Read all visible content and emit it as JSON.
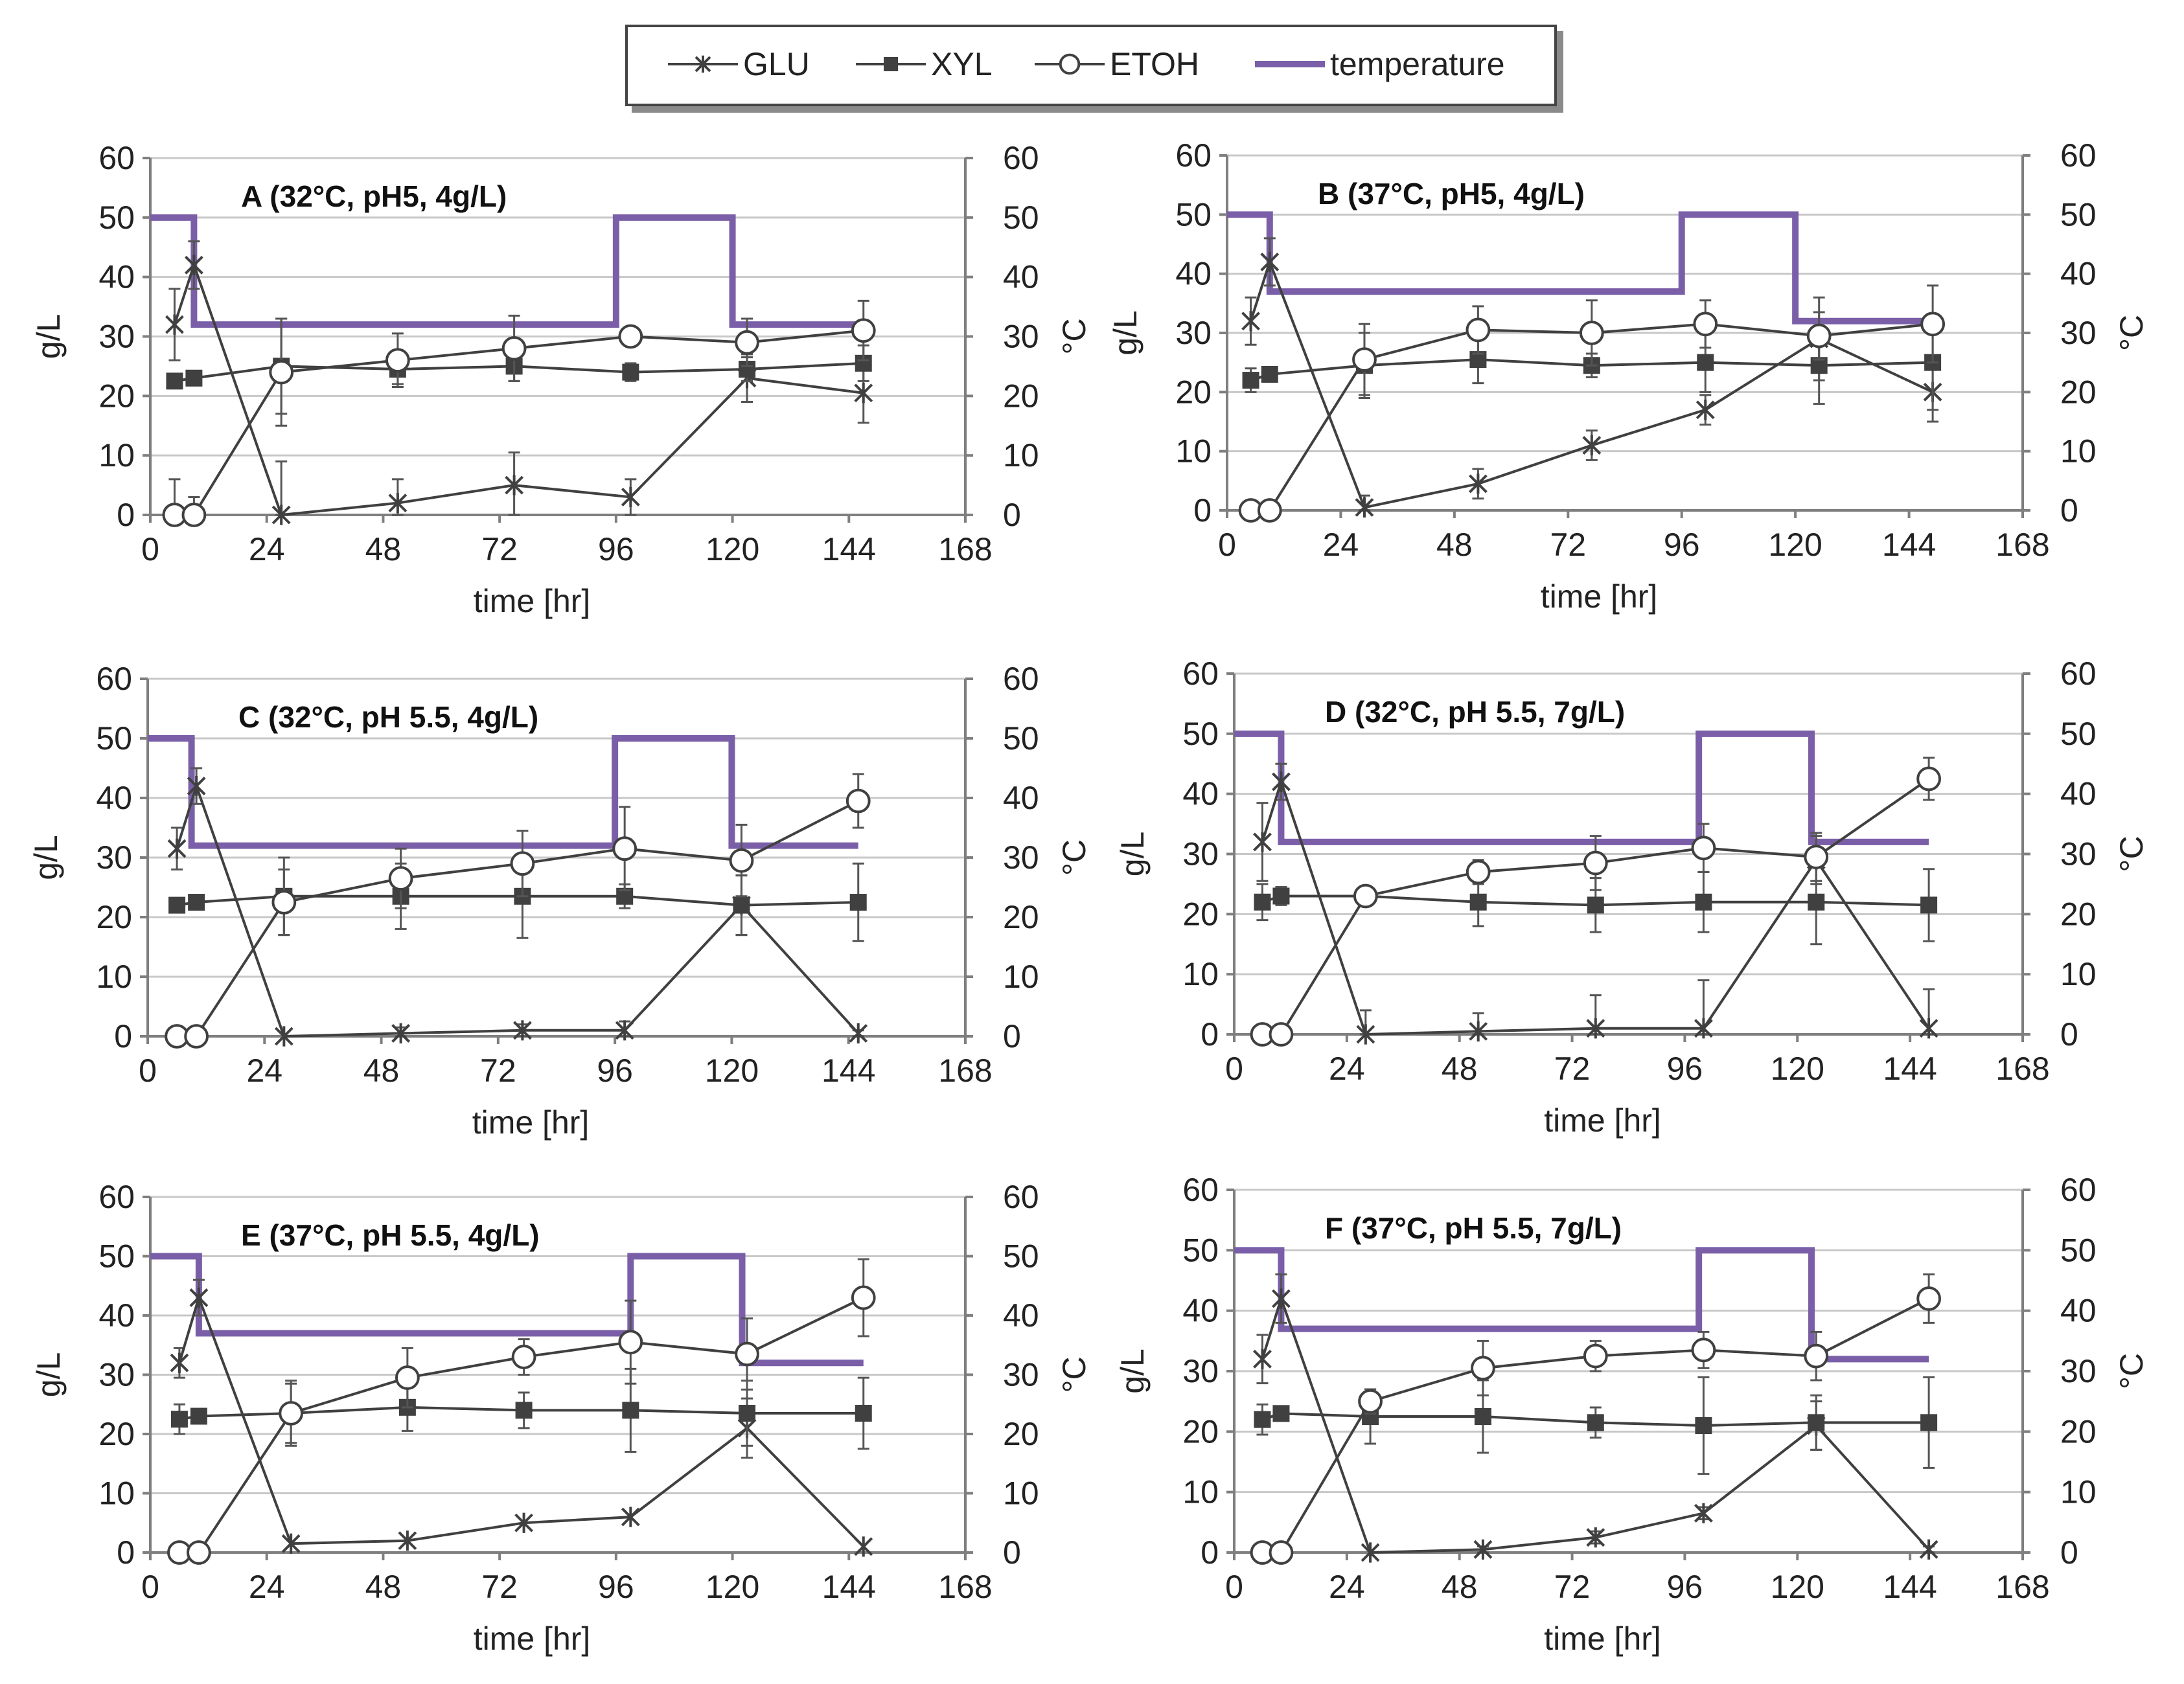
{
  "legend": {
    "glu": "GLU",
    "xyl": "XYL",
    "etoh": "ETOH",
    "temperature": "temperature"
  },
  "colors": {
    "series": "#404040",
    "temperature": "#7a5fa8",
    "grid": "#c8c8c8",
    "axis": "#7f7f7f"
  },
  "chart_data": [
    {
      "type": "line",
      "title": "A (32°C, pH5, 4g/L)",
      "xlabel": "time [hr]",
      "ylabel": "g/L",
      "y2label": "°C",
      "xlim": [
        0,
        168
      ],
      "ylim": [
        0,
        60
      ],
      "y2lim": [
        0,
        60
      ],
      "xticks": [
        "0",
        "24",
        "48",
        "72",
        "96",
        "120",
        "144",
        "168"
      ],
      "yticks": [
        "0",
        "10",
        "20",
        "30",
        "40",
        "50",
        "60"
      ],
      "series": [
        {
          "name": "GLU",
          "x": [
            5,
            9,
            27,
            51,
            75,
            99,
            123,
            147
          ],
          "y": [
            32,
            42,
            0,
            2,
            5,
            3,
            23,
            20.5
          ],
          "err": [
            6,
            4,
            9,
            4,
            5.5,
            3,
            4,
            5
          ]
        },
        {
          "name": "XYL",
          "x": [
            5,
            9,
            27,
            51,
            75,
            99,
            123,
            147
          ],
          "y": [
            22.5,
            23,
            25,
            24.5,
            25,
            24,
            24.5,
            25.5
          ],
          "err": [
            1,
            1,
            8,
            2.5,
            2.5,
            1.5,
            2,
            3
          ]
        },
        {
          "name": "ETOH",
          "x": [
            5,
            9,
            27,
            51,
            75,
            99,
            123,
            147
          ],
          "y": [
            0,
            0,
            24,
            26,
            28,
            30,
            29,
            31
          ],
          "err": [
            6,
            3,
            9,
            4.5,
            5.5,
            1,
            4,
            5
          ]
        },
        {
          "name": "temperature",
          "x": [
            0,
            9,
            9,
            96,
            96,
            120,
            120,
            147
          ],
          "y": [
            50,
            50,
            32,
            32,
            50,
            50,
            32,
            32
          ]
        }
      ]
    },
    {
      "type": "line",
      "title": "B (37°C, pH5, 4g/L)",
      "xlabel": "time [hr]",
      "ylabel": "g/L",
      "y2label": "°C",
      "xlim": [
        0,
        168
      ],
      "ylim": [
        0,
        60
      ],
      "y2lim": [
        0,
        60
      ],
      "xticks": [
        "0",
        "24",
        "48",
        "72",
        "96",
        "120",
        "144",
        "168"
      ],
      "yticks": [
        "0",
        "10",
        "20",
        "30",
        "40",
        "50",
        "60"
      ],
      "series": [
        {
          "name": "GLU",
          "x": [
            5,
            9,
            29,
            53,
            77,
            101,
            125,
            149
          ],
          "y": [
            32,
            42,
            0.5,
            4.5,
            11,
            17,
            29,
            20
          ],
          "err": [
            4,
            4,
            2,
            2.5,
            2.5,
            2.5,
            7,
            5
          ]
        },
        {
          "name": "XYL",
          "x": [
            5,
            9,
            29,
            53,
            77,
            101,
            125,
            149
          ],
          "y": [
            22,
            23,
            24.5,
            25.5,
            24.5,
            25,
            24.5,
            25
          ],
          "err": [
            2,
            1,
            5.5,
            4,
            2,
            5,
            6.5,
            8
          ]
        },
        {
          "name": "ETOH",
          "x": [
            5,
            9,
            29,
            53,
            77,
            101,
            125,
            149
          ],
          "y": [
            0,
            0,
            25.5,
            30.5,
            30,
            31.5,
            29.5,
            31.5
          ],
          "err": [
            0,
            0,
            6,
            4,
            5.5,
            4,
            4,
            6.5
          ]
        },
        {
          "name": "temperature",
          "x": [
            0,
            9,
            9,
            96,
            96,
            120,
            120,
            147
          ],
          "y": [
            50,
            50,
            37,
            37,
            50,
            50,
            32,
            32
          ]
        }
      ]
    },
    {
      "type": "line",
      "title": "C (32°C, pH 5.5, 4g/L)",
      "xlabel": "time  [hr]",
      "ylabel": "g/L",
      "y2label": "°C",
      "xlim": [
        0,
        168
      ],
      "ylim": [
        0,
        60
      ],
      "y2lim": [
        0,
        60
      ],
      "xticks": [
        "0",
        "24",
        "48",
        "72",
        "96",
        "120",
        "144",
        "168"
      ],
      "yticks": [
        "0",
        "10",
        "20",
        "30",
        "40",
        "50",
        "60"
      ],
      "series": [
        {
          "name": "GLU",
          "x": [
            6,
            10,
            28,
            52,
            77,
            98,
            122,
            146
          ],
          "y": [
            31.5,
            42,
            0,
            0.5,
            1,
            1,
            22,
            0.5
          ],
          "err": [
            3.5,
            3,
            0,
            1,
            1,
            1.5,
            5,
            0.5
          ]
        },
        {
          "name": "XYL",
          "x": [
            6,
            10,
            28,
            52,
            77,
            98,
            122,
            146
          ],
          "y": [
            22,
            22.5,
            23.5,
            23.5,
            23.5,
            23.5,
            22,
            22.5
          ],
          "err": [
            1,
            1,
            6.5,
            5.5,
            7,
            2,
            5,
            6.5
          ]
        },
        {
          "name": "ETOH",
          "x": [
            6,
            10,
            28,
            52,
            77,
            98,
            122,
            146
          ],
          "y": [
            0,
            0,
            22.5,
            26.5,
            29,
            31.5,
            29.5,
            39.5
          ],
          "err": [
            0,
            0,
            5.5,
            5,
            5.5,
            7,
            6,
            4.5
          ]
        },
        {
          "name": "temperature",
          "x": [
            0,
            9,
            9,
            96,
            96,
            120,
            120,
            146
          ],
          "y": [
            50,
            50,
            32,
            32,
            50,
            50,
            32,
            32
          ]
        }
      ]
    },
    {
      "type": "line",
      "title": "D (32°C, pH 5.5, 7g/L)",
      "xlabel": "time [hr]",
      "ylabel": "g/L",
      "y2label": "°C",
      "xlim": [
        0,
        168
      ],
      "ylim": [
        0,
        60
      ],
      "y2lim": [
        0,
        60
      ],
      "xticks": [
        "0",
        "24",
        "48",
        "72",
        "96",
        "120",
        "144",
        "168"
      ],
      "yticks": [
        "0",
        "10",
        "20",
        "30",
        "40",
        "50",
        "60"
      ],
      "series": [
        {
          "name": "GLU",
          "x": [
            6,
            10,
            28,
            52,
            77,
            100,
            124,
            148
          ],
          "y": [
            32,
            42,
            0,
            0.5,
            1,
            1,
            29,
            1
          ],
          "err": [
            6.5,
            3,
            4,
            3,
            5.5,
            8,
            4,
            6.5
          ]
        },
        {
          "name": "XYL",
          "x": [
            6,
            10,
            28,
            52,
            77,
            100,
            124,
            148
          ],
          "y": [
            22,
            23,
            23,
            22,
            21.5,
            22,
            22,
            21.5
          ],
          "err": [
            3,
            1.5,
            1.5,
            4,
            4.5,
            5,
            7,
            6
          ]
        },
        {
          "name": "ETOH",
          "x": [
            6,
            10,
            28,
            52,
            77,
            100,
            124,
            148
          ],
          "y": [
            0,
            0,
            23,
            27,
            28.5,
            31,
            29.5,
            42.5
          ],
          "err": [
            0,
            0,
            1.5,
            2,
            4.5,
            4,
            4,
            3.5
          ]
        },
        {
          "name": "temperature",
          "x": [
            0,
            10,
            10,
            99,
            99,
            123,
            123,
            148
          ],
          "y": [
            50,
            50,
            32,
            32,
            50,
            50,
            32,
            32
          ]
        }
      ]
    },
    {
      "type": "line",
      "title": "E (37°C, pH 5.5, 4g/L)",
      "xlabel": "time [hr]",
      "ylabel": "g/L",
      "y2label": "°C",
      "xlim": [
        0,
        168
      ],
      "ylim": [
        0,
        60
      ],
      "y2lim": [
        0,
        60
      ],
      "xticks": [
        "0",
        "24",
        "48",
        "72",
        "96",
        "120",
        "144",
        "168"
      ],
      "yticks": [
        "0",
        "10",
        "20",
        "30",
        "40",
        "50",
        "60"
      ],
      "series": [
        {
          "name": "GLU",
          "x": [
            6,
            10,
            29,
            53,
            77,
            99,
            123,
            147
          ],
          "y": [
            32,
            43,
            1.5,
            2,
            5,
            6,
            21,
            1
          ],
          "err": [
            2.5,
            3,
            0,
            0,
            0,
            0,
            5,
            0
          ]
        },
        {
          "name": "XYL",
          "x": [
            6,
            10,
            29,
            53,
            77,
            99,
            123,
            147
          ],
          "y": [
            22.5,
            23,
            23.5,
            24.5,
            24,
            24,
            23.5,
            23.5
          ],
          "err": [
            2.5,
            1,
            5,
            4,
            3,
            7,
            5.5,
            6
          ]
        },
        {
          "name": "ETOH",
          "x": [
            6,
            10,
            29,
            53,
            77,
            99,
            123,
            147
          ],
          "y": [
            0,
            0,
            23.5,
            29.5,
            33,
            35.5,
            33.5,
            43
          ],
          "err": [
            0,
            0,
            5.5,
            5,
            3,
            7,
            6,
            6.5
          ]
        },
        {
          "name": "temperature",
          "x": [
            0,
            10,
            10,
            99,
            99,
            122,
            122,
            147
          ],
          "y": [
            50,
            50,
            37,
            37,
            50,
            50,
            32,
            32
          ]
        }
      ]
    },
    {
      "type": "line",
      "title": "F (37°C, pH 5.5, 7g/L)",
      "xlabel": "time [hr]",
      "ylabel": "g/L",
      "y2label": "°C",
      "xlim": [
        0,
        168
      ],
      "ylim": [
        0,
        60
      ],
      "y2lim": [
        0,
        60
      ],
      "xticks": [
        "0",
        "24",
        "48",
        "72",
        "96",
        "120",
        "144",
        "168"
      ],
      "yticks": [
        "0",
        "10",
        "20",
        "30",
        "40",
        "50",
        "60"
      ],
      "series": [
        {
          "name": "GLU",
          "x": [
            6,
            10,
            29,
            53,
            77,
            100,
            124,
            148
          ],
          "y": [
            32,
            42,
            0,
            0.5,
            2.5,
            6.5,
            21,
            0.5
          ],
          "err": [
            4,
            4,
            0,
            0.5,
            1,
            1,
            4,
            0.5
          ]
        },
        {
          "name": "XYL",
          "x": [
            6,
            10,
            29,
            53,
            77,
            100,
            124,
            148
          ],
          "y": [
            22,
            23,
            22.5,
            22.5,
            21.5,
            21,
            21.5,
            21.5
          ],
          "err": [
            2.5,
            1,
            4.5,
            6,
            2.5,
            8,
            4.5,
            7.5
          ]
        },
        {
          "name": "ETOH",
          "x": [
            6,
            10,
            29,
            53,
            77,
            100,
            124,
            148
          ],
          "y": [
            0,
            0,
            25,
            30.5,
            32.5,
            33.5,
            32.5,
            42
          ],
          "err": [
            0,
            0,
            2,
            4.5,
            2.5,
            3,
            4,
            4
          ]
        },
        {
          "name": "temperature",
          "x": [
            0,
            10,
            10,
            99,
            99,
            123,
            123,
            148
          ],
          "y": [
            50,
            50,
            37,
            37,
            50,
            50,
            32,
            32
          ]
        }
      ]
    }
  ]
}
